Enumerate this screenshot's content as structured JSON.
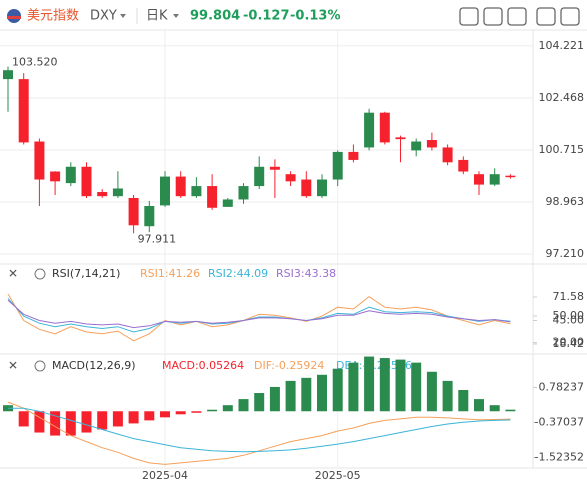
{
  "header": {
    "name": "美元指数",
    "symbol": "DXY",
    "period": "日K",
    "price": "99.804",
    "change": "-0.127",
    "change_pct": "-0.13%"
  },
  "chart_data": [
    {
      "type": "candlestick",
      "categories": [
        null,
        null,
        null,
        null,
        null,
        null,
        null,
        null,
        null,
        null,
        "2025-04",
        null,
        null,
        null,
        null,
        null,
        null,
        null,
        null,
        null,
        null,
        "2025-05",
        null,
        null,
        null,
        null,
        null,
        null,
        null,
        null,
        null,
        null,
        null
      ],
      "open": [
        103.1,
        103.1,
        101.0,
        99.99,
        99.6,
        100.15,
        99.3,
        99.16,
        99.1,
        98.15,
        98.85,
        99.82,
        99.16,
        99.5,
        98.8,
        99.05,
        99.5,
        100.15,
        99.9,
        99.72,
        99.16,
        99.72,
        100.65,
        100.8,
        101.97,
        101.14,
        100.7,
        101.05,
        100.8,
        100.38,
        99.9,
        99.55,
        99.85
      ],
      "high": [
        103.52,
        103.3,
        101.1,
        100.0,
        100.3,
        100.3,
        99.4,
        100.0,
        99.2,
        99.0,
        100.0,
        100.0,
        99.8,
        99.9,
        99.1,
        99.6,
        100.5,
        100.4,
        100.0,
        100.0,
        99.9,
        100.7,
        100.9,
        102.1,
        102.0,
        101.2,
        101.1,
        101.3,
        100.9,
        100.5,
        100.0,
        100.1,
        99.9
      ],
      "low": [
        102.0,
        100.9,
        98.83,
        99.2,
        99.5,
        99.1,
        99.1,
        99.1,
        97.911,
        97.95,
        98.8,
        99.1,
        99.1,
        98.7,
        98.8,
        98.9,
        99.4,
        99.1,
        99.5,
        99.1,
        99.1,
        99.5,
        100.3,
        100.7,
        100.9,
        100.3,
        100.5,
        100.7,
        100.2,
        99.9,
        99.2,
        99.5,
        99.75
      ],
      "close": [
        103.4,
        100.97,
        99.72,
        99.66,
        100.15,
        99.16,
        99.16,
        99.42,
        98.18,
        98.83,
        99.82,
        99.16,
        99.5,
        98.77,
        99.05,
        99.5,
        100.15,
        100.05,
        99.66,
        99.16,
        99.72,
        100.65,
        100.38,
        101.97,
        100.97,
        101.08,
        101.0,
        100.8,
        100.3,
        99.99,
        99.55,
        99.9,
        99.8
      ],
      "high_label": "103.520",
      "low_label": "97.911",
      "up_color": "#2b8a4e",
      "down_color": "#f5222d",
      "ylim": [
        96.945,
        104.618
      ],
      "yticks": [
        104.221,
        102.468,
        100.715,
        98.963,
        {
          "value": 97.21,
          "label": "97.210"
        }
      ],
      "grid": true
    },
    {
      "type": "line",
      "title": "RSI(7,14,21)",
      "series": [
        {
          "name": "RSI1:41.26",
          "color": "#f5a05a",
          "values": [
            75,
            45,
            35,
            30,
            38,
            32,
            30,
            33,
            22,
            30,
            45,
            40,
            44,
            38,
            40,
            45,
            52,
            51,
            48,
            44,
            50,
            60,
            58,
            72,
            60,
            58,
            60,
            57,
            50,
            45,
            40,
            45,
            41.26
          ]
        },
        {
          "name": "RSI2:44.09",
          "color": "#3cb4d8",
          "values": [
            70,
            50,
            42,
            38,
            41,
            38,
            36,
            38,
            32,
            36,
            44,
            42,
            44,
            41,
            42,
            45,
            49,
            49,
            47,
            45,
            48,
            53,
            52,
            60,
            55,
            54,
            55,
            54,
            50,
            47,
            44,
            46,
            44.09
          ]
        },
        {
          "name": "RSI3:43.38",
          "color": "#9b6fd0",
          "values": [
            68,
            52,
            45,
            42,
            44,
            41,
            40,
            41,
            37,
            39,
            44,
            43,
            44,
            42,
            43,
            45,
            48,
            48,
            47,
            45,
            47,
            51,
            51,
            56,
            53,
            52,
            53,
            52,
            49,
            47,
            45,
            46,
            43.38
          ]
        }
      ],
      "ylim": [
        9.37,
        104.4
      ],
      "yticks": [
        71.58,
        {
          "value": 50,
          "label": "50.00"
        },
        {
          "value": 45,
          "label": "45.00"
        },
        18.42,
        {
          "value": 20,
          "label": "20.00"
        }
      ]
    },
    {
      "type": "macd",
      "title": "MACD(12,26,9)",
      "series": [
        {
          "name": "MACD:0.05264",
          "color": "#f5222d",
          "up_color": "#2b8a4e",
          "values": [
            0.2,
            -0.5,
            -0.7,
            -0.8,
            -0.8,
            -0.7,
            -0.6,
            -0.5,
            -0.4,
            -0.3,
            -0.2,
            -0.1,
            -0.05,
            0.05,
            0.2,
            0.4,
            0.6,
            0.8,
            1.0,
            1.1,
            1.2,
            1.4,
            1.6,
            1.8,
            1.75,
            1.7,
            1.6,
            1.3,
            1.0,
            0.7,
            0.4,
            0.2,
            0.05264
          ]
        },
        {
          "name": "DIF:-0.25924",
          "color": "#f5a05a",
          "values": [
            0.3,
            0.1,
            -0.2,
            -0.5,
            -0.8,
            -1.0,
            -1.2,
            -1.35,
            -1.55,
            -1.7,
            -1.75,
            -1.7,
            -1.65,
            -1.6,
            -1.55,
            -1.45,
            -1.3,
            -1.15,
            -1.0,
            -0.9,
            -0.8,
            -0.65,
            -0.55,
            -0.4,
            -0.3,
            -0.25,
            -0.2,
            -0.2,
            -0.22,
            -0.25,
            -0.28,
            -0.27,
            -0.25924
          ]
        },
        {
          "name": "DEA:-0.28556",
          "color": "#3cb4d8",
          "values": [
            0.1,
            0.1,
            0.0,
            -0.15,
            -0.3,
            -0.45,
            -0.6,
            -0.75,
            -0.9,
            -1.0,
            -1.1,
            -1.2,
            -1.25,
            -1.3,
            -1.32,
            -1.33,
            -1.32,
            -1.3,
            -1.27,
            -1.22,
            -1.15,
            -1.08,
            -1.0,
            -0.9,
            -0.8,
            -0.7,
            -0.6,
            -0.5,
            -0.42,
            -0.36,
            -0.32,
            -0.3,
            -0.28556
          ]
        }
      ],
      "ylim": [
        -1.9,
        1.95
      ],
      "yticks": [
        0.78237,
        -0.37037,
        -1.52352
      ]
    }
  ]
}
